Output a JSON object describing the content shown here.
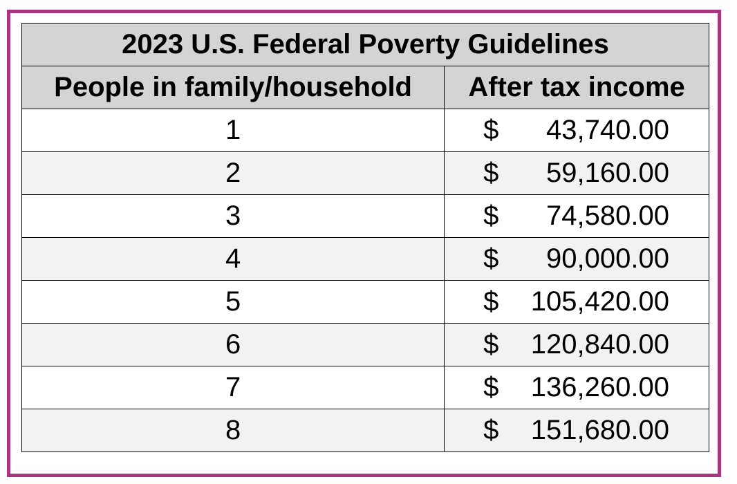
{
  "table": {
    "title": "2023 U.S. Federal Poverty Guidelines",
    "headers": [
      "People in family/household",
      "After tax income"
    ],
    "currency_symbol": "$",
    "rows": [
      {
        "people": "1",
        "income": "43,740.00"
      },
      {
        "people": "2",
        "income": "59,160.00"
      },
      {
        "people": "3",
        "income": "74,580.00"
      },
      {
        "people": "4",
        "income": "90,000.00"
      },
      {
        "people": "5",
        "income": "105,420.00"
      },
      {
        "people": "6",
        "income": "120,840.00"
      },
      {
        "people": "7",
        "income": "136,260.00"
      },
      {
        "people": "8",
        "income": "151,680.00"
      }
    ]
  },
  "colors": {
    "frame_border": "#a8357f",
    "header_background": "#d4d4d4",
    "alternate_row_background": "#f2f2f2"
  }
}
